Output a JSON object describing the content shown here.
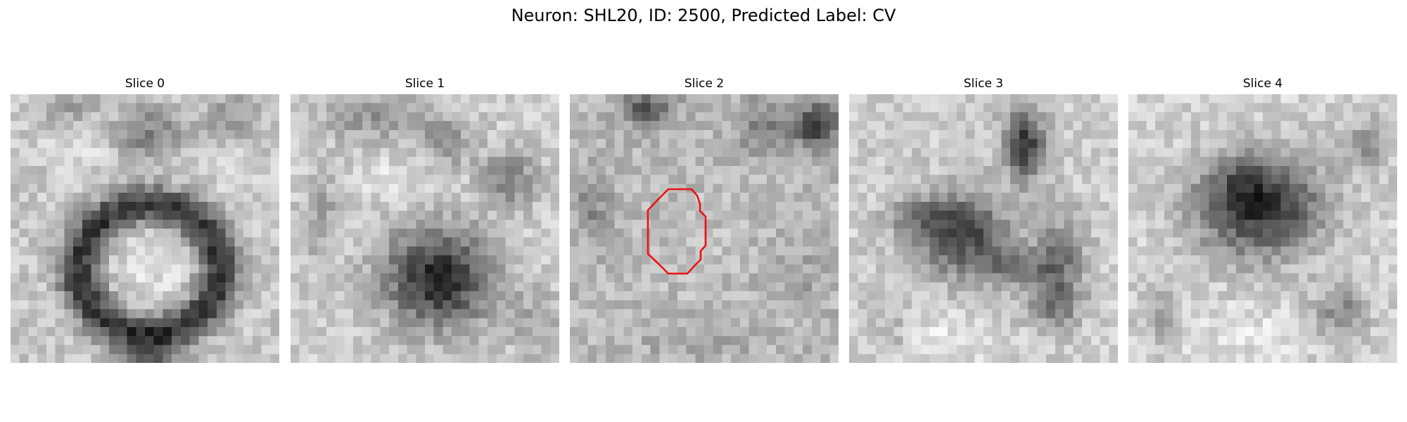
{
  "figure": {
    "suptitle": "Neuron: SHL20, ID: 2500, Predicted Label: CV"
  },
  "panels": [
    {
      "title": "Slice 0",
      "pattern": "bright-center-dark-ring"
    },
    {
      "title": "Slice 1",
      "pattern": "dark-blob-lower-center"
    },
    {
      "title": "Slice 2",
      "pattern": "mottled-light-with-roi"
    },
    {
      "title": "Slice 3",
      "pattern": "dark-star-center"
    },
    {
      "title": "Slice 4",
      "pattern": "dark-blob-upper-center"
    }
  ],
  "roi": {
    "slice": "Slice 2",
    "color": "#ee1111"
  },
  "colors": {
    "background": "#ffffff",
    "roi_stroke": "#ee1111"
  },
  "colormap": "gray"
}
